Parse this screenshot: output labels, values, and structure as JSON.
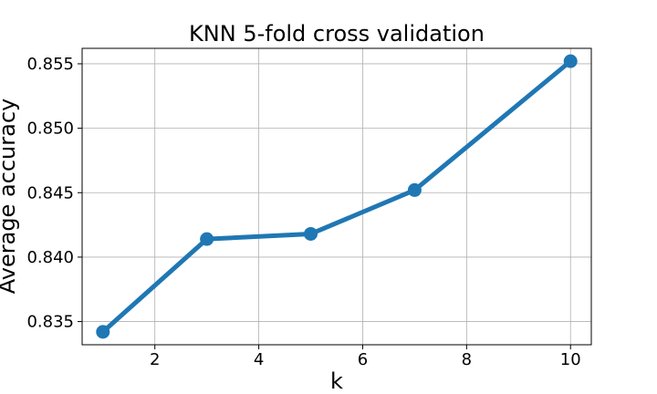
{
  "chart_data": {
    "type": "line",
    "title": "KNN 5-fold cross validation",
    "xlabel": "k",
    "ylabel": "Average accuracy",
    "grid": true,
    "xlim": [
      0.6,
      10.4
    ],
    "ylim": [
      0.8332,
      0.8562
    ],
    "xticks": [
      2,
      4,
      6,
      8,
      10
    ],
    "yticks": [
      0.835,
      0.84,
      0.845,
      0.85,
      0.855
    ],
    "xtick_labels": [
      "2",
      "4",
      "6",
      "8",
      "10"
    ],
    "ytick_labels": [
      "0.835",
      "0.840",
      "0.845",
      "0.850",
      "0.855"
    ],
    "series": [
      {
        "x": [
          1,
          3,
          5,
          7,
          10
        ],
        "y": [
          0.8342,
          0.8414,
          0.8418,
          0.8452,
          0.8552
        ],
        "color": "#1f77b4",
        "marker": "circle"
      }
    ]
  }
}
